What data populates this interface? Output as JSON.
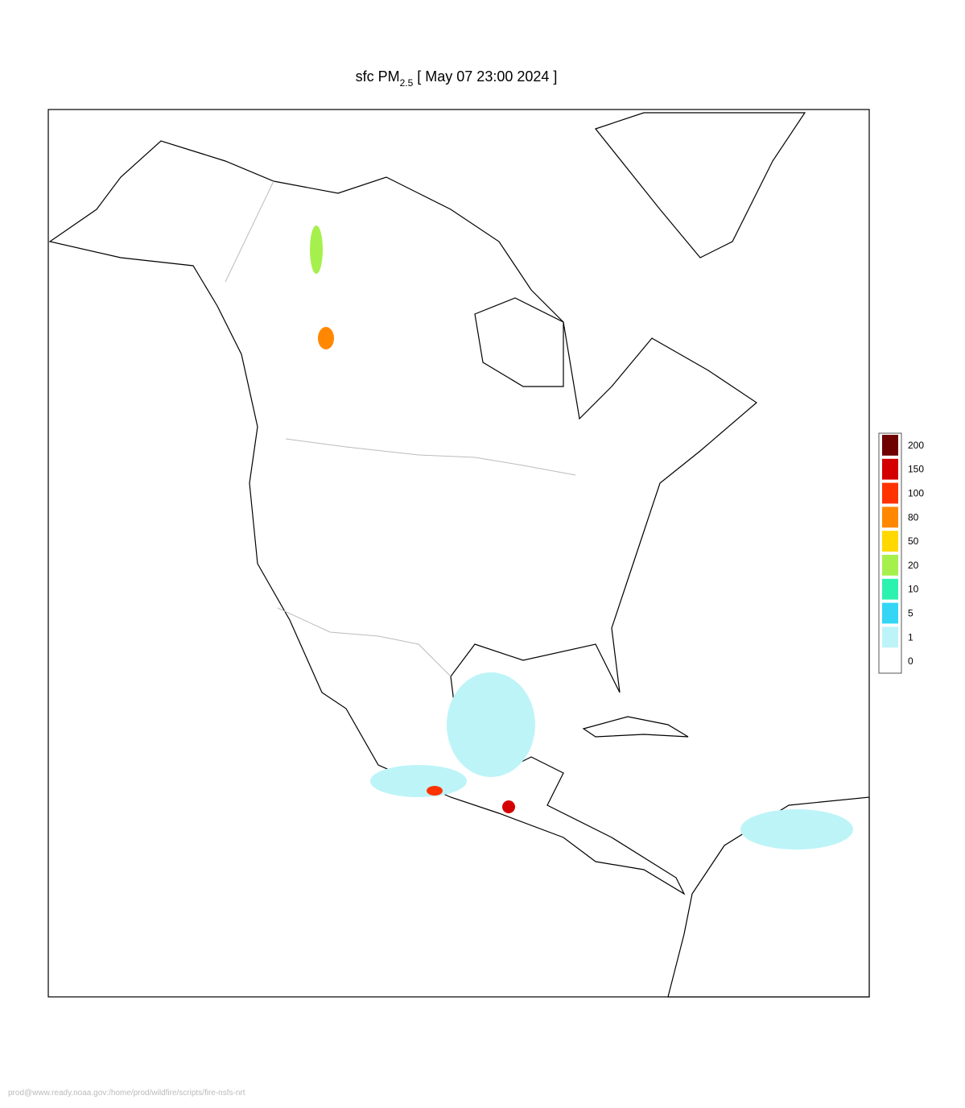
{
  "title": {
    "prefix": "sfc PM",
    "subscript": "2.5",
    "suffix": "[ May 07 23:00 2024 ]"
  },
  "legend": {
    "labels": [
      "0",
      "1",
      "5",
      "10",
      "20",
      "50",
      "80",
      "100",
      "150",
      "200"
    ],
    "colors": [
      "#ffffff",
      "#bdf4f8",
      "#33d6f5",
      "#2cf2b0",
      "#a6f04e",
      "#ffd800",
      "#ff8800",
      "#ff3300",
      "#d40000",
      "#6e0000"
    ]
  },
  "footer": "prod@www.ready.noaa.gov:/home/prod/wildfire/scripts/fire-nsfs-nrt"
}
